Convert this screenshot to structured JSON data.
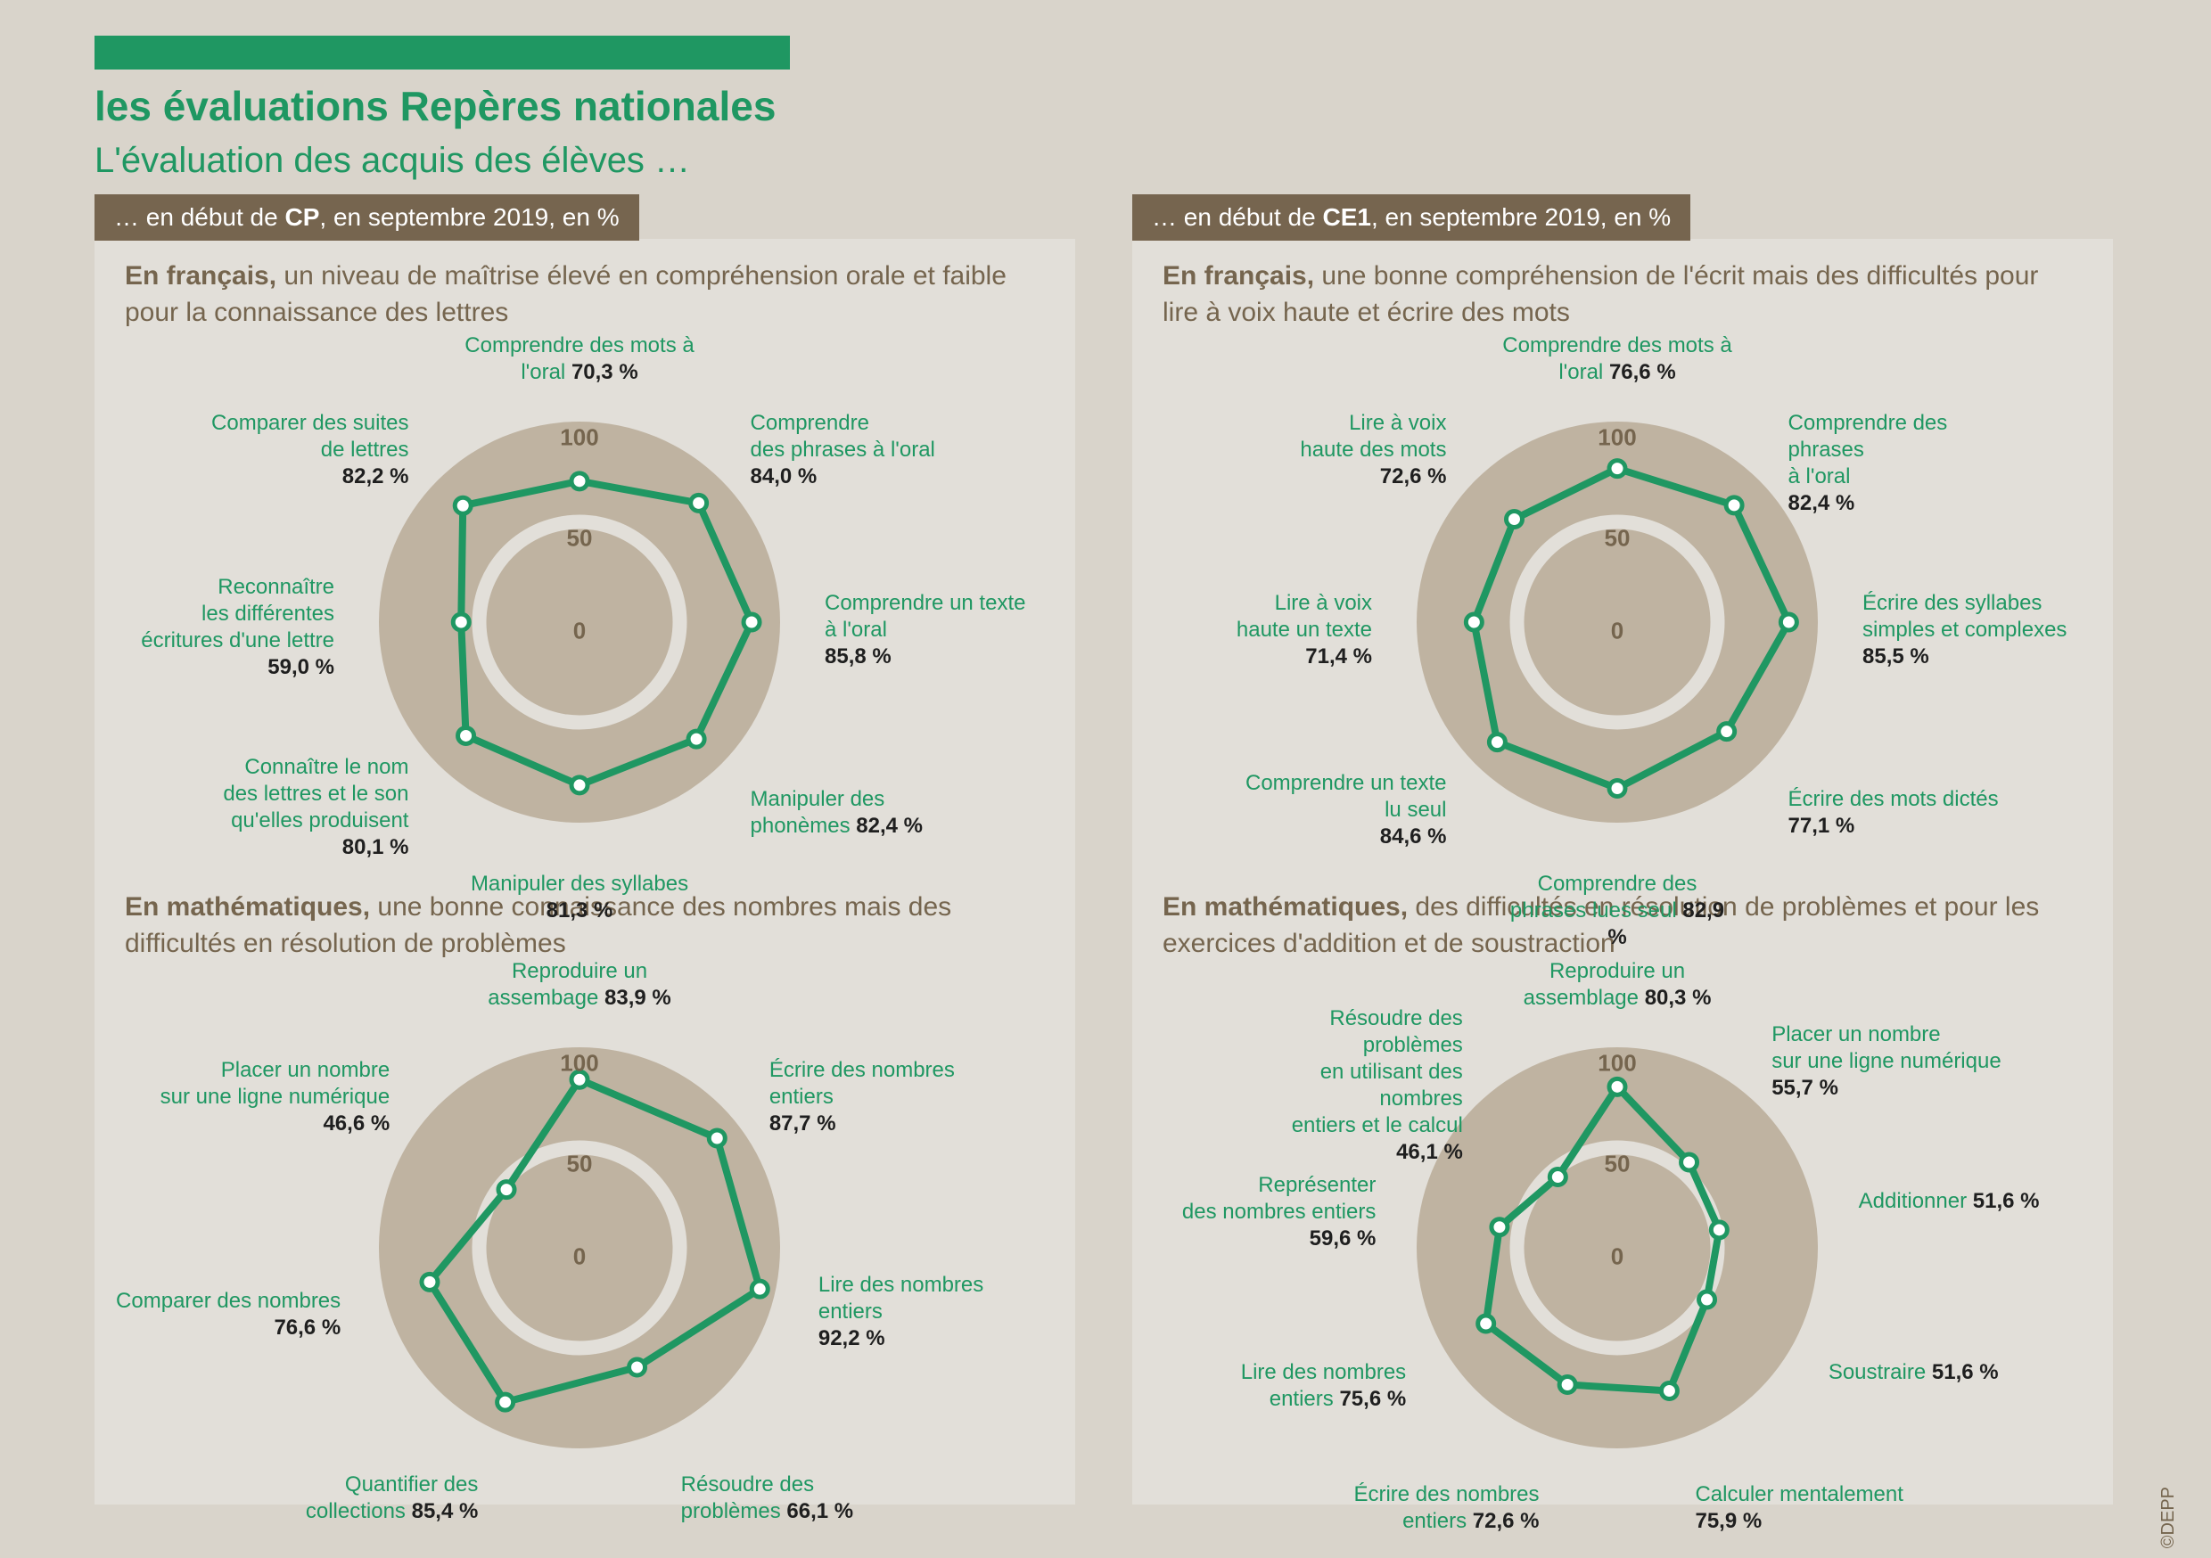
{
  "colors": {
    "page_bg": "#d9d4cb",
    "panel_bg": "#e2dfd9",
    "accent_green": "#1f9762",
    "ribbon_brown": "#76654f",
    "text_brown": "#75654e",
    "ring_fill": "#bfb3a1",
    "ring_gap": "#e2dfd9",
    "marker_fill": "#ffffff"
  },
  "title": "les évaluations Repères nationales",
  "subtitle": "L'évaluation des acquis des élèves …",
  "credit": "©DEPP",
  "ribbons": {
    "cp": {
      "prefix": "… en début de ",
      "bold": "CP",
      "suffix": ", en septembre 2019, en %"
    },
    "ce1": {
      "prefix": "… en début de ",
      "bold": "CE1",
      "suffix": ", en septembre 2019, en %"
    }
  },
  "radar_style": {
    "radius": 225,
    "ring_values": [
      0,
      50,
      100
    ],
    "line_color": "#1f9762",
    "line_width": 8,
    "marker_radius": 9,
    "marker_stroke": "#1f9762",
    "marker_fill": "#ffffff",
    "ring_fill": "#bfb3a1",
    "ring_gap_color": "#e2dfd9",
    "ring_label_color": "#75654e",
    "ring_label_fontsize": 26
  },
  "charts": [
    {
      "id": "cp_fr",
      "intro_lead": "En français,",
      "intro_text": " un niveau de maîtrise élevé en compréhension orale et faible pour la connaissance des lettres",
      "axes": [
        {
          "label": "Comprendre des mots à l'oral",
          "value": 70.3
        },
        {
          "label": "Comprendre\ndes phrases à l'oral",
          "value": 84.0
        },
        {
          "label": "Comprendre un texte\nà l'oral",
          "value": 85.8
        },
        {
          "label": "Manipuler des phonèmes",
          "value": 82.4
        },
        {
          "label": "Manipuler des syllabes",
          "value": 81.3
        },
        {
          "label": "Connaître le nom\ndes lettres et le son\nqu'elles produisent",
          "value": 80.1
        },
        {
          "label": "Reconnaître\nles différentes\nécritures d'une lettre",
          "value": 59.0
        },
        {
          "label": "Comparer des suites\nde lettres",
          "value": 82.2
        }
      ]
    },
    {
      "id": "cp_math",
      "intro_lead": "En mathématiques,",
      "intro_text": " une bonne connaissance des nombres mais des difficultés en résolution de problèmes",
      "axes": [
        {
          "label": "Reproduire un assembage",
          "value": 83.9
        },
        {
          "label": "Écrire des nombres\nentiers",
          "value": 87.7
        },
        {
          "label": "Lire des nombres\nentiers",
          "value": 92.2
        },
        {
          "label": "Résoudre des problèmes",
          "value": 66.1
        },
        {
          "label": "Quantifier des collections",
          "value": 85.4
        },
        {
          "label": "Comparer des nombres",
          "value": 76.6
        },
        {
          "label": "Placer un nombre\nsur une ligne numérique",
          "value": 46.6
        }
      ]
    },
    {
      "id": "ce1_fr",
      "intro_lead": "En français,",
      "intro_text": " une bonne compréhension de l'écrit mais des difficultés pour lire à voix haute et écrire des mots",
      "axes": [
        {
          "label": "Comprendre des mots à l'oral",
          "value": 76.6
        },
        {
          "label": "Comprendre des phrases\nà l'oral",
          "value": 82.4
        },
        {
          "label": "Écrire des syllabes\nsimples et complexes",
          "value": 85.5
        },
        {
          "label": "Écrire des mots dictés",
          "value": 77.1
        },
        {
          "label": "Comprendre des phrases lues seul",
          "value": 82.9
        },
        {
          "label": "Comprendre un texte\nlu seul",
          "value": 84.6
        },
        {
          "label": "Lire à voix\nhaute un texte",
          "value": 71.4
        },
        {
          "label": "Lire à voix\nhaute des mots",
          "value": 72.6
        }
      ]
    },
    {
      "id": "ce1_math",
      "intro_lead": "En mathématiques,",
      "intro_text": " des difficultés en résolution de problèmes et pour les exercices d'addition et de soustraction",
      "axes": [
        {
          "label": "Reproduire un assemblage",
          "value": 80.3
        },
        {
          "label": "Placer un nombre\nsur une ligne numérique",
          "value": 55.7
        },
        {
          "label": "Additionner",
          "value": 51.6
        },
        {
          "label": "Soustraire",
          "value": 51.6
        },
        {
          "label": "Calculer mentalement",
          "value": 75.9
        },
        {
          "label": "Écrire des nombres entiers",
          "value": 72.6
        },
        {
          "label": "Lire des nombres entiers",
          "value": 75.6
        },
        {
          "label": "Représenter\ndes nombres entiers",
          "value": 59.6
        },
        {
          "label": "Résoudre des problèmes\nen utilisant des nombres\nentiers et le calcul",
          "value": 46.1
        }
      ]
    }
  ]
}
